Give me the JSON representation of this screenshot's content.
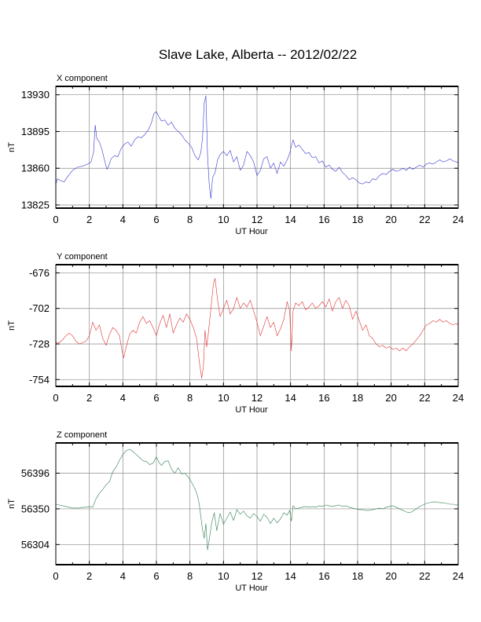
{
  "title": "Slave Lake, Alberta -- 2012/02/22",
  "chart_data": [
    {
      "type": "line",
      "panel_label": "X component",
      "xlabel": "UT Hour",
      "ylabel": "nT",
      "xlim": [
        0,
        24
      ],
      "ylim": [
        13822,
        13938
      ],
      "x_ticks": [
        0,
        2,
        4,
        6,
        8,
        10,
        12,
        14,
        16,
        18,
        20,
        22,
        24
      ],
      "y_ticks": [
        13825,
        13860,
        13895,
        13930
      ],
      "grid": true,
      "color": "#3535d0",
      "series": [
        {
          "x": [
            0,
            0.1,
            0.3,
            0.5,
            0.7,
            1.0,
            1.3,
            1.6,
            1.9,
            2.1,
            2.25,
            2.35,
            2.45,
            2.6,
            2.75,
            2.9,
            3.05,
            3.15,
            3.3,
            3.5,
            3.7,
            3.9,
            4.1,
            4.3,
            4.5,
            4.7,
            4.9,
            5.1,
            5.3,
            5.5,
            5.7,
            5.85,
            6.0,
            6.15,
            6.3,
            6.5,
            6.7,
            6.9,
            7.1,
            7.3,
            7.5,
            7.7,
            7.9,
            8.1,
            8.3,
            8.5,
            8.65,
            8.75,
            8.85,
            8.95,
            9.05,
            9.15,
            9.25,
            9.35,
            9.5,
            9.65,
            9.8,
            10.0,
            10.2,
            10.4,
            10.6,
            10.8,
            11.0,
            11.2,
            11.4,
            11.6,
            11.8,
            12.0,
            12.2,
            12.4,
            12.6,
            12.8,
            13.0,
            13.2,
            13.4,
            13.6,
            13.8,
            13.95,
            14.05,
            14.15,
            14.3,
            14.5,
            14.7,
            14.9,
            15.1,
            15.3,
            15.5,
            15.7,
            15.9,
            16.1,
            16.3,
            16.5,
            16.7,
            16.9,
            17.1,
            17.3,
            17.5,
            17.7,
            17.9,
            18.1,
            18.3,
            18.5,
            18.7,
            18.9,
            19.1,
            19.3,
            19.5,
            19.7,
            19.9,
            20.1,
            20.3,
            20.5,
            20.7,
            20.9,
            21.1,
            21.3,
            21.5,
            21.7,
            21.9,
            22.1,
            22.3,
            22.5,
            22.7,
            22.9,
            23.1,
            23.3,
            23.5,
            23.7,
            23.9,
            24.0
          ],
          "y": [
            13845,
            13850,
            13848,
            13847,
            13852,
            13858,
            13861,
            13862,
            13864,
            13866,
            13875,
            13901,
            13888,
            13885,
            13878,
            13868,
            13859,
            13862,
            13869,
            13872,
            13871,
            13879,
            13883,
            13885,
            13881,
            13887,
            13890,
            13889,
            13892,
            13896,
            13903,
            13912,
            13914,
            13909,
            13905,
            13906,
            13901,
            13904,
            13898,
            13895,
            13892,
            13887,
            13884,
            13880,
            13872,
            13868,
            13875,
            13889,
            13922,
            13929,
            13872,
            13845,
            13831,
            13851,
            13856,
            13868,
            13873,
            13876,
            13872,
            13877,
            13866,
            13871,
            13858,
            13863,
            13876,
            13872,
            13866,
            13853,
            13858,
            13869,
            13871,
            13860,
            13865,
            13855,
            13866,
            13862,
            13868,
            13874,
            13881,
            13887,
            13880,
            13882,
            13878,
            13874,
            13875,
            13870,
            13871,
            13865,
            13867,
            13861,
            13863,
            13859,
            13857,
            13861,
            13856,
            13853,
            13849,
            13851,
            13849,
            13846,
            13845,
            13847,
            13846,
            13850,
            13849,
            13853,
            13855,
            13854,
            13857,
            13859,
            13857,
            13858,
            13860,
            13858,
            13861,
            13859,
            13861,
            13863,
            13861,
            13864,
            13865,
            13864,
            13866,
            13868,
            13866,
            13867,
            13869,
            13867,
            13866,
            13865
          ]
        }
      ]
    },
    {
      "type": "line",
      "panel_label": "Y component",
      "xlabel": "UT Hour",
      "ylabel": "nT",
      "xlim": [
        0,
        24
      ],
      "ylim": [
        -759,
        -670
      ],
      "x_ticks": [
        0,
        2,
        4,
        6,
        8,
        10,
        12,
        14,
        16,
        18,
        20,
        22,
        24
      ],
      "y_ticks": [
        -676,
        -702,
        -728,
        -754
      ],
      "grid": true,
      "color": "#e03030",
      "series": [
        {
          "x": [
            0,
            0.2,
            0.4,
            0.6,
            0.8,
            1.0,
            1.2,
            1.4,
            1.6,
            1.8,
            2.0,
            2.2,
            2.4,
            2.6,
            2.8,
            3.0,
            3.2,
            3.4,
            3.6,
            3.8,
            3.95,
            4.05,
            4.2,
            4.4,
            4.6,
            4.8,
            5.0,
            5.2,
            5.4,
            5.6,
            5.8,
            6.0,
            6.2,
            6.4,
            6.6,
            6.8,
            7.0,
            7.2,
            7.4,
            7.6,
            7.8,
            8.0,
            8.2,
            8.4,
            8.55,
            8.7,
            8.8,
            8.9,
            9.0,
            9.1,
            9.25,
            9.4,
            9.5,
            9.65,
            9.8,
            10.0,
            10.2,
            10.4,
            10.6,
            10.8,
            11.0,
            11.2,
            11.4,
            11.6,
            11.8,
            12.0,
            12.2,
            12.4,
            12.6,
            12.8,
            13.0,
            13.2,
            13.4,
            13.6,
            13.8,
            13.95,
            14.05,
            14.15,
            14.3,
            14.5,
            14.7,
            14.9,
            15.1,
            15.3,
            15.5,
            15.7,
            15.9,
            16.1,
            16.3,
            16.5,
            16.7,
            16.9,
            17.1,
            17.3,
            17.5,
            17.7,
            17.9,
            18.1,
            18.3,
            18.5,
            18.7,
            18.9,
            19.1,
            19.3,
            19.5,
            19.7,
            19.9,
            20.1,
            20.3,
            20.5,
            20.7,
            20.9,
            21.1,
            21.3,
            21.5,
            21.7,
            21.9,
            22.1,
            22.3,
            22.5,
            22.7,
            22.9,
            23.1,
            23.3,
            23.5,
            23.7,
            23.9,
            24.0
          ],
          "y": [
            -727,
            -727,
            -725,
            -722,
            -720,
            -722,
            -726,
            -728,
            -727,
            -726,
            -722,
            -712,
            -718,
            -714,
            -724,
            -729,
            -721,
            -716,
            -718,
            -722,
            -733,
            -738,
            -730,
            -721,
            -718,
            -720,
            -712,
            -708,
            -713,
            -711,
            -716,
            -722,
            -713,
            -707,
            -716,
            -706,
            -720,
            -714,
            -709,
            -712,
            -706,
            -710,
            -716,
            -724,
            -740,
            -753,
            -745,
            -718,
            -730,
            -720,
            -702,
            -684,
            -680,
            -696,
            -708,
            -702,
            -696,
            -706,
            -702,
            -694,
            -702,
            -698,
            -701,
            -696,
            -704,
            -712,
            -722,
            -715,
            -708,
            -716,
            -712,
            -722,
            -717,
            -710,
            -697,
            -704,
            -733,
            -704,
            -698,
            -700,
            -697,
            -703,
            -701,
            -698,
            -702,
            -700,
            -697,
            -701,
            -695,
            -704,
            -697,
            -694,
            -702,
            -696,
            -700,
            -710,
            -704,
            -711,
            -718,
            -714,
            -722,
            -724,
            -728,
            -730,
            -729,
            -731,
            -730,
            -732,
            -731,
            -733,
            -731,
            -733,
            -730,
            -728,
            -725,
            -722,
            -718,
            -714,
            -713,
            -711,
            -712,
            -710,
            -712,
            -711,
            -713,
            -714,
            -713,
            -714
          ]
        }
      ]
    },
    {
      "type": "line",
      "panel_label": "Z component",
      "xlabel": "UT Hour",
      "ylabel": "nT",
      "xlim": [
        0,
        24
      ],
      "ylim": [
        56278,
        56435
      ],
      "x_ticks": [
        0,
        2,
        4,
        6,
        8,
        10,
        12,
        14,
        16,
        18,
        20,
        22,
        24
      ],
      "y_ticks": [
        56304,
        56350,
        56396
      ],
      "grid": true,
      "color": "#2f7f4f",
      "series": [
        {
          "x": [
            0,
            0.2,
            0.4,
            0.6,
            0.8,
            1.0,
            1.2,
            1.4,
            1.6,
            1.8,
            2.0,
            2.2,
            2.4,
            2.6,
            2.8,
            3.0,
            3.2,
            3.4,
            3.6,
            3.8,
            4.0,
            4.2,
            4.4,
            4.6,
            4.8,
            5.0,
            5.2,
            5.4,
            5.6,
            5.8,
            6.0,
            6.15,
            6.3,
            6.5,
            6.7,
            6.9,
            7.1,
            7.3,
            7.5,
            7.7,
            7.9,
            8.1,
            8.3,
            8.45,
            8.55,
            8.65,
            8.75,
            8.85,
            8.95,
            9.05,
            9.15,
            9.3,
            9.45,
            9.6,
            9.8,
            10.0,
            10.2,
            10.4,
            10.6,
            10.8,
            11.0,
            11.2,
            11.4,
            11.6,
            11.8,
            12.0,
            12.2,
            12.4,
            12.6,
            12.8,
            13.0,
            13.2,
            13.4,
            13.6,
            13.8,
            13.95,
            14.05,
            14.15,
            14.3,
            14.5,
            14.7,
            14.9,
            15.1,
            15.3,
            15.5,
            15.7,
            15.9,
            16.1,
            16.3,
            16.5,
            16.7,
            16.9,
            17.1,
            17.3,
            17.5,
            17.7,
            17.9,
            18.1,
            18.3,
            18.5,
            18.7,
            18.9,
            19.1,
            19.3,
            19.5,
            19.7,
            19.9,
            20.1,
            20.3,
            20.5,
            20.7,
            20.9,
            21.1,
            21.3,
            21.5,
            21.7,
            21.9,
            22.1,
            22.3,
            22.5,
            22.7,
            22.9,
            23.1,
            23.3,
            23.5,
            23.7,
            23.9,
            24.0
          ],
          "y": [
            56356,
            56355,
            56354,
            56353,
            56352,
            56351,
            56351,
            56351,
            56352,
            56352,
            56353,
            56352,
            56363,
            56370,
            56375,
            56381,
            56385,
            56398,
            56404,
            56413,
            56420,
            56425,
            56427,
            56424,
            56420,
            56416,
            56412,
            56411,
            56407,
            56409,
            56417,
            56410,
            56406,
            56411,
            56412,
            56401,
            56396,
            56403,
            56395,
            56396,
            56391,
            56384,
            56376,
            56367,
            56357,
            56340,
            56323,
            56312,
            56331,
            56297,
            56310,
            56332,
            56345,
            56322,
            56344,
            56330,
            56338,
            56346,
            56335,
            56349,
            56343,
            56347,
            56341,
            56338,
            56344,
            56340,
            56334,
            56343,
            56339,
            56331,
            56338,
            56332,
            56337,
            56345,
            56342,
            56348,
            56334,
            56354,
            56350,
            56351,
            56352,
            56353,
            56352,
            56353,
            56352,
            56354,
            56353,
            56355,
            56354,
            56353,
            56354,
            56355,
            56353,
            56354,
            56352,
            56351,
            56350,
            56349,
            56349,
            56348,
            56348,
            56349,
            56350,
            56351,
            56350,
            56352,
            56353,
            56354,
            56352,
            56350,
            56348,
            56346,
            56345,
            56347,
            56350,
            56353,
            56355,
            56357,
            56358,
            56359,
            56359,
            56358,
            56358,
            56357,
            56356,
            56356,
            56355,
            56355
          ]
        }
      ]
    }
  ]
}
